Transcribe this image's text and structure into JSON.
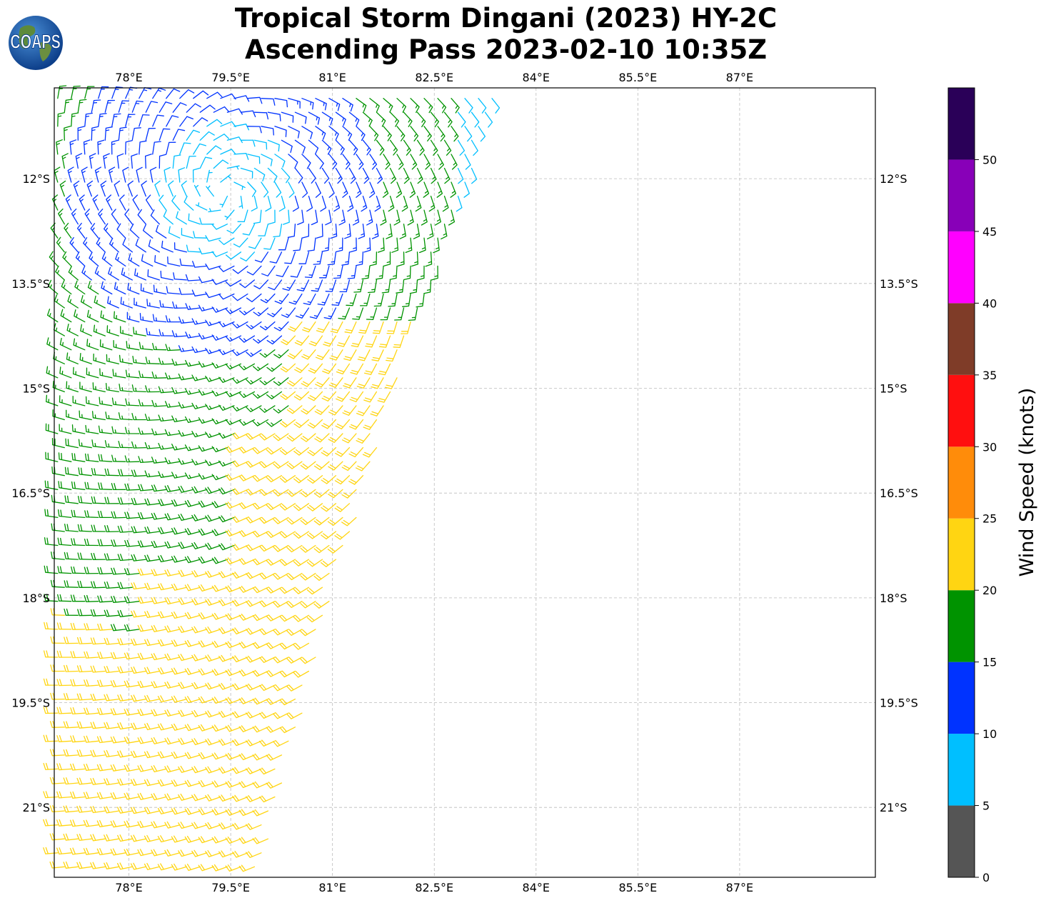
{
  "title": {
    "line1": "Tropical Storm Dingani (2023) HY-2C",
    "line2": "Ascending Pass 2023-02-10 10:35Z"
  },
  "logo": {
    "text": "COAPS",
    "icon": "globe-logo-icon"
  },
  "chart_data": {
    "type": "wind-barb-map",
    "lon_range": [
      76.9,
      89.0
    ],
    "lat_range": [
      -22.0,
      -10.7
    ],
    "lon_ticks": [
      78,
      79.5,
      81,
      82.5,
      84,
      85.5,
      87
    ],
    "lon_tick_labels": [
      "78°E",
      "79.5°E",
      "81°E",
      "82.5°E",
      "84°E",
      "85.5°E",
      "87°E"
    ],
    "lat_ticks": [
      -12,
      -13.5,
      -15,
      -16.5,
      -18,
      -19.5,
      -21
    ],
    "lat_tick_labels": [
      "12°S",
      "13.5°S",
      "15°S",
      "16.5°S",
      "18°S",
      "19.5°S",
      "21°S"
    ],
    "grid": true,
    "colorbar": {
      "label": "Wind Speed (knots)",
      "bounds": [
        0,
        5,
        10,
        15,
        20,
        25,
        30,
        35,
        40,
        45,
        50,
        55
      ],
      "tick_values": [
        0,
        5,
        10,
        15,
        20,
        25,
        30,
        35,
        40,
        45,
        50
      ],
      "tick_labels": [
        "0",
        "5",
        "10",
        "15",
        "20",
        "25",
        "30",
        "35",
        "40",
        "45",
        "50"
      ],
      "colors": [
        "#555555",
        "#00bfff",
        "#0033ff",
        "#009300",
        "#ffd512",
        "#ff8c0a",
        "#ff0f0f",
        "#7f3c28",
        "#ff00ff",
        "#8800b8",
        "#2a0058"
      ]
    },
    "swath": {
      "description_free": true,
      "left_lon": 76.9,
      "right_edge": [
        [
          -10.7,
          83.5
        ],
        [
          -12.0,
          83.0
        ],
        [
          -13.5,
          82.5
        ],
        [
          -15.0,
          81.9
        ],
        [
          -16.5,
          81.5
        ],
        [
          -18.0,
          81.0
        ],
        [
          -19.5,
          80.6
        ],
        [
          -21.0,
          80.2
        ],
        [
          -22.0,
          79.9
        ]
      ],
      "storm_center": [
        -12.2,
        79.4
      ]
    }
  }
}
